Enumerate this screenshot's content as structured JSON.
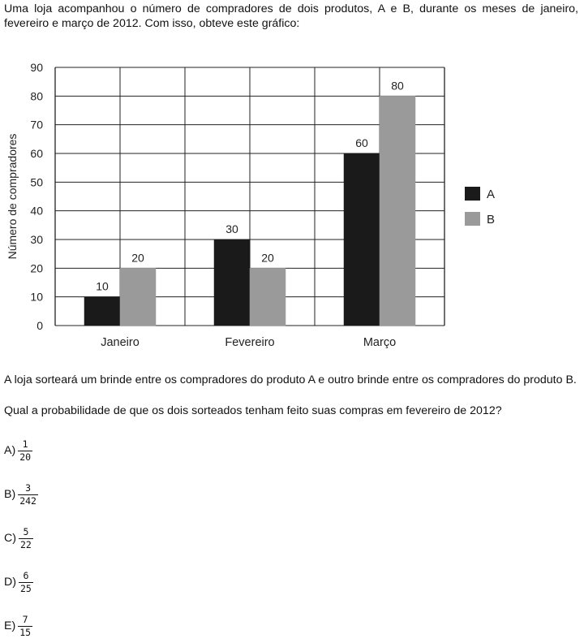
{
  "intro": "Uma loja acompanhou o número de compradores de dois produtos, A e B, durante os meses de janeiro, fevereiro e março de 2012. Com isso, obteve este gráfico:",
  "chart_data": {
    "type": "bar",
    "categories": [
      "Janeiro",
      "Fevereiro",
      "Março"
    ],
    "series": [
      {
        "name": "A",
        "values": [
          10,
          30,
          60
        ],
        "color": "#1a1a1a"
      },
      {
        "name": "B",
        "values": [
          20,
          20,
          80
        ],
        "color": "#9a9a9a"
      }
    ],
    "title": "",
    "xlabel": "",
    "ylabel": "Número de compradores",
    "ylim": [
      0,
      90
    ],
    "yticks": [
      "0",
      "10",
      "20",
      "30",
      "40",
      "50",
      "60",
      "70",
      "80",
      "90"
    ],
    "grid": true,
    "legend": "right"
  },
  "question_part1": "A loja sorteará um brinde entre os compradores do produto A e outro brinde entre os compradores do produto B.",
  "question_part2": "Qual a probabilidade de que os dois sorteados tenham feito suas compras em fevereiro de 2012?",
  "options": [
    {
      "letter": "A)",
      "num": "1",
      "den": "20"
    },
    {
      "letter": "B)",
      "num": "3",
      "den": "242"
    },
    {
      "letter": "C)",
      "num": "5",
      "den": "22"
    },
    {
      "letter": "D)",
      "num": "6",
      "den": "25"
    },
    {
      "letter": "E)",
      "num": "7",
      "den": "15"
    }
  ]
}
